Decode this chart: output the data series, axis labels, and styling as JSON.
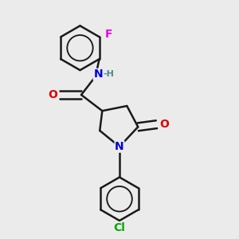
{
  "background_color": "#ebebeb",
  "bond_color": "#1a1a1a",
  "bond_width": 1.8,
  "atom_colors": {
    "N": "#0000dd",
    "O": "#dd0000",
    "Cl": "#00aa00",
    "F": "#ee00ee",
    "C": "#1a1a1a",
    "H": "#4a8888"
  },
  "font_size": 9,
  "fig_width": 3.0,
  "fig_height": 3.0,
  "dpi": 100
}
